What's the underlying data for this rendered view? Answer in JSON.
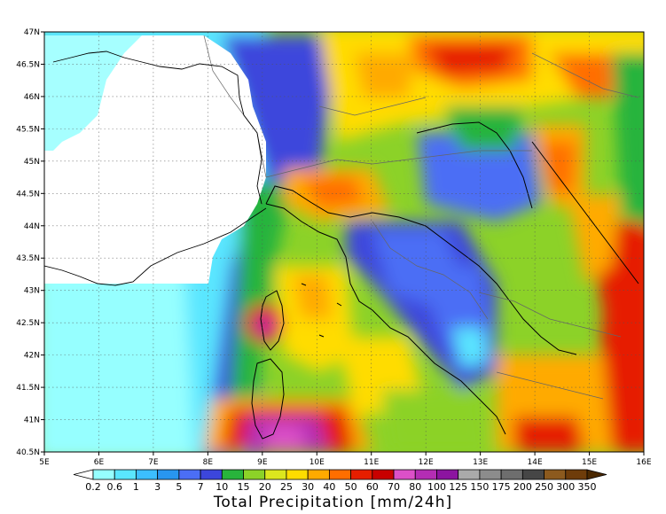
{
  "map": {
    "x_ticks": [
      "5E",
      "6E",
      "7E",
      "8E",
      "9E",
      "10E",
      "11E",
      "12E",
      "13E",
      "14E",
      "15E",
      "16E"
    ],
    "y_ticks": [
      "47N",
      "46.5N",
      "46N",
      "45.5N",
      "45N",
      "44.5N",
      "44N",
      "43.5N",
      "43N",
      "42.5N",
      "42N",
      "41.5N",
      "41N",
      "40.5N"
    ],
    "lon_range": [
      5,
      16
    ],
    "lat_range": [
      40.5,
      47
    ],
    "grid": "dotted",
    "field_colors_note": "filled contours of 24h precipitation"
  },
  "colorbar": {
    "title": "Total Precipitation [mm/24h]",
    "labels": [
      "0.2",
      "0.6",
      "1",
      "3",
      "5",
      "7",
      "10",
      "15",
      "20",
      "25",
      "30",
      "40",
      "50",
      "60",
      "70",
      "80",
      "100",
      "125",
      "150",
      "175",
      "200",
      "250",
      "300",
      "350"
    ],
    "colors": [
      "#ffffff",
      "#96ffff",
      "#5ae6ff",
      "#3cbeff",
      "#2896f0",
      "#4b6ef5",
      "#3c46dc",
      "#28b43c",
      "#8cd228",
      "#dce61e",
      "#ffdc00",
      "#ffaa00",
      "#ff6e00",
      "#e61e00",
      "#c80000",
      "#dc50c8",
      "#b42db4",
      "#8c14a0",
      "#aaaaaa",
      "#8c8c8c",
      "#6e6e6e",
      "#464646",
      "#8c5a1e",
      "#6e3c0a",
      "#4b2800"
    ]
  }
}
